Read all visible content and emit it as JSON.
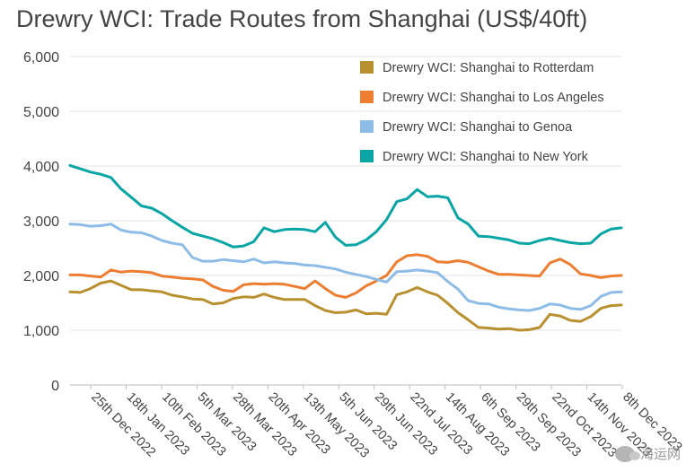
{
  "chart_data": {
    "type": "line",
    "title": "Drewry WCI: Trade Routes from Shanghai (US$/40ft)",
    "xlabel": "",
    "ylabel": "",
    "ylim": [
      0,
      6000
    ],
    "yticks": [
      "0",
      "1,000",
      "2,000",
      "3,000",
      "4,000",
      "5,000",
      "6,000"
    ],
    "grid": true,
    "legend_position": "top-right",
    "x": [
      "2022-12-01",
      "2022-12-08",
      "2022-12-15",
      "2022-12-22",
      "2022-12-29",
      "2023-01-05",
      "2023-01-12",
      "2023-01-19",
      "2023-01-26",
      "2023-02-02",
      "2023-02-09",
      "2023-02-16",
      "2023-02-23",
      "2023-03-02",
      "2023-03-09",
      "2023-03-16",
      "2023-03-23",
      "2023-03-30",
      "2023-04-06",
      "2023-04-13",
      "2023-04-20",
      "2023-04-27",
      "2023-05-04",
      "2023-05-11",
      "2023-05-18",
      "2023-05-25",
      "2023-06-01",
      "2023-06-08",
      "2023-06-15",
      "2023-06-22",
      "2023-06-29",
      "2023-07-06",
      "2023-07-13",
      "2023-07-20",
      "2023-07-27",
      "2023-08-03",
      "2023-08-10",
      "2023-08-17",
      "2023-08-24",
      "2023-08-31",
      "2023-09-07",
      "2023-09-14",
      "2023-09-21",
      "2023-09-28",
      "2023-10-05",
      "2023-10-12",
      "2023-10-19",
      "2023-10-26",
      "2023-11-02",
      "2023-11-09",
      "2023-11-16",
      "2023-11-23",
      "2023-11-30",
      "2023-12-07",
      "2023-12-14"
    ],
    "xticks": [
      "25th Dec 2022",
      "18th Jan 2023",
      "10th Feb 2023",
      "5th Mar 2023",
      "28th Mar 2023",
      "20th Apr 2023",
      "13th May 2023",
      "5th Jun 2023",
      "29th Jun 2023",
      "22nd Jul 2023",
      "14th Aug 2023",
      "6th Sep 2023",
      "29th Sep 2023",
      "22nd Oct 2023",
      "14th Nov 2023",
      "8th Dec 2023"
    ],
    "series": [
      {
        "name": "Drewry WCI: Shanghai to Rotterdam",
        "color": "#b8902f",
        "values": [
          1700,
          1690,
          1760,
          1860,
          1900,
          1820,
          1740,
          1740,
          1720,
          1700,
          1640,
          1610,
          1570,
          1560,
          1480,
          1500,
          1580,
          1610,
          1600,
          1660,
          1600,
          1560,
          1560,
          1560,
          1450,
          1360,
          1320,
          1330,
          1370,
          1300,
          1310,
          1290,
          1650,
          1700,
          1780,
          1700,
          1640,
          1490,
          1320,
          1190,
          1050,
          1040,
          1020,
          1030,
          1000,
          1010,
          1050,
          1290,
          1260,
          1180,
          1160,
          1250,
          1400,
          1450,
          1460
        ]
      },
      {
        "name": "Drewry WCI: Shanghai to Los Angeles",
        "color": "#ed7d31",
        "values": [
          2010,
          2010,
          1990,
          1970,
          2100,
          2060,
          2080,
          2070,
          2050,
          1990,
          1970,
          1950,
          1940,
          1920,
          1800,
          1730,
          1710,
          1830,
          1850,
          1840,
          1850,
          1840,
          1800,
          1760,
          1900,
          1760,
          1640,
          1600,
          1680,
          1810,
          1900,
          2000,
          2250,
          2360,
          2380,
          2350,
          2250,
          2240,
          2270,
          2240,
          2160,
          2080,
          2020,
          2020,
          2010,
          2000,
          1990,
          2230,
          2300,
          2200,
          2030,
          2000,
          1960,
          1990,
          2000
        ]
      },
      {
        "name": "Drewry WCI: Shanghai to Genoa",
        "color": "#8dbde6",
        "values": [
          2940,
          2930,
          2900,
          2910,
          2940,
          2830,
          2790,
          2780,
          2720,
          2640,
          2590,
          2560,
          2330,
          2260,
          2260,
          2290,
          2270,
          2250,
          2300,
          2230,
          2250,
          2230,
          2220,
          2190,
          2180,
          2150,
          2120,
          2060,
          2020,
          1980,
          1930,
          1880,
          2070,
          2080,
          2100,
          2080,
          2050,
          1890,
          1750,
          1540,
          1490,
          1480,
          1420,
          1390,
          1370,
          1360,
          1400,
          1480,
          1460,
          1400,
          1380,
          1450,
          1620,
          1690,
          1700
        ]
      },
      {
        "name": "Drewry WCI: Shanghai to New York",
        "color": "#0aa5a5",
        "values": [
          4010,
          3950,
          3890,
          3850,
          3790,
          3580,
          3430,
          3270,
          3230,
          3130,
          3000,
          2880,
          2770,
          2720,
          2670,
          2600,
          2520,
          2540,
          2620,
          2870,
          2800,
          2840,
          2850,
          2840,
          2800,
          2970,
          2700,
          2550,
          2560,
          2650,
          2800,
          3020,
          3350,
          3400,
          3570,
          3440,
          3450,
          3420,
          3050,
          2940,
          2720,
          2710,
          2680,
          2650,
          2590,
          2580,
          2640,
          2680,
          2640,
          2600,
          2580,
          2590,
          2760,
          2850,
          2870
        ]
      }
    ]
  },
  "watermark": {
    "text": "海运网"
  }
}
